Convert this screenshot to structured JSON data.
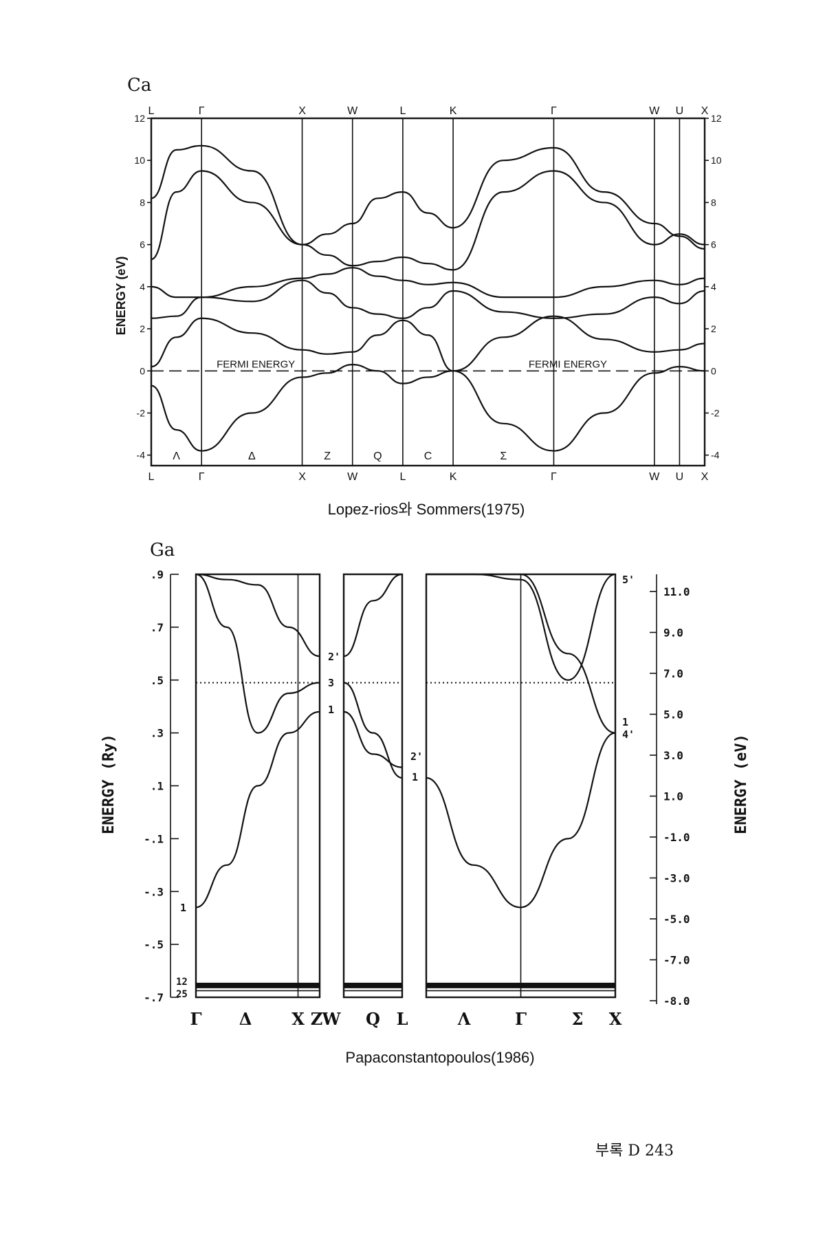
{
  "page": {
    "footer": "부록 D 243"
  },
  "chart_data": [
    {
      "type": "line",
      "element": "Ca",
      "ylabel": "ENERGY (eV)",
      "ylim": [
        -4.5,
        12
      ],
      "yticks": [
        12,
        10,
        8,
        6,
        4,
        2,
        0,
        -2,
        -4
      ],
      "yticks_right": [
        12,
        10,
        8,
        6,
        4,
        2,
        0,
        -2,
        -4
      ],
      "kpoints_top": [
        "L",
        "Γ",
        "X",
        "W",
        "L",
        "K",
        "Γ",
        "W",
        "U",
        "X"
      ],
      "kpoints_bottom": [
        "L",
        "Γ",
        "X",
        "W",
        "L",
        "K",
        "Γ",
        "W",
        "U",
        "X"
      ],
      "kpoint_positions": [
        0,
        1,
        3,
        4,
        5,
        6,
        8,
        10,
        10.5,
        11
      ],
      "segment_labels": [
        "Λ",
        "Δ",
        "Z",
        "Q",
        "C",
        "Σ"
      ],
      "fermi_label": "FERMI ENERGY",
      "fermi_level": 0,
      "caption": "Lopez-rios와 Sommers(1975)",
      "series": [
        {
          "x": [
            0,
            0.5,
            1,
            2,
            3,
            3.5,
            4,
            4.5,
            5,
            5.5,
            6,
            7,
            8,
            9,
            10,
            10.5,
            11
          ],
          "y": [
            -0.7,
            -2.8,
            -3.8,
            -2.0,
            -0.3,
            -0.1,
            0.3,
            0.0,
            -0.6,
            -0.3,
            0.0,
            -2.5,
            -3.8,
            -2.0,
            -0.1,
            0.2,
            0.0
          ]
        },
        {
          "x": [
            0,
            0.5,
            1,
            2,
            3,
            3.5,
            4,
            4.5,
            5,
            5.5,
            6,
            7,
            8,
            9,
            10,
            10.5,
            11
          ],
          "y": [
            0.2,
            1.6,
            2.5,
            1.8,
            1.0,
            0.8,
            0.9,
            1.7,
            2.4,
            1.7,
            0.0,
            1.6,
            2.6,
            1.5,
            0.9,
            1.0,
            1.3
          ]
        },
        {
          "x": [
            0,
            0.5,
            1,
            2,
            3,
            3.5,
            4,
            4.5,
            5,
            5.5,
            6,
            7,
            8,
            9,
            10,
            10.5,
            11
          ],
          "y": [
            2.5,
            2.6,
            3.5,
            3.3,
            4.3,
            3.7,
            3.0,
            2.7,
            2.5,
            3.0,
            3.8,
            2.8,
            2.5,
            2.7,
            3.5,
            3.2,
            3.8
          ]
        },
        {
          "x": [
            0,
            0.5,
            1,
            2,
            3,
            3.5,
            4,
            4.5,
            5,
            5.5,
            6,
            7,
            8,
            9,
            10,
            10.5,
            11
          ],
          "y": [
            4.0,
            3.5,
            3.5,
            4.0,
            4.4,
            4.6,
            4.9,
            4.5,
            4.3,
            4.1,
            4.2,
            3.5,
            3.5,
            4.0,
            4.3,
            4.1,
            4.4
          ]
        },
        {
          "x": [
            0,
            0.5,
            1,
            2,
            3,
            3.5,
            4,
            4.5,
            5,
            5.5,
            6,
            7,
            8,
            9,
            10,
            10.5,
            11
          ],
          "y": [
            5.3,
            8.5,
            9.5,
            8.0,
            6.0,
            5.5,
            5.0,
            5.2,
            5.4,
            5.1,
            4.8,
            8.5,
            9.5,
            8.0,
            6.0,
            6.5,
            6.0
          ]
        },
        {
          "x": [
            0,
            0.5,
            1,
            2,
            3,
            3.5,
            4,
            4.5,
            5,
            5.5,
            6,
            7,
            8,
            9,
            10,
            10.5,
            11
          ],
          "y": [
            8.2,
            10.5,
            10.7,
            9.5,
            6.0,
            6.5,
            7.0,
            8.2,
            8.5,
            7.5,
            6.8,
            10.0,
            10.6,
            8.5,
            7.0,
            6.4,
            5.8
          ]
        }
      ]
    },
    {
      "type": "line",
      "element": "Ga",
      "ylabel": "ENERGY (Ry)",
      "ylabel_right": "ENERGY (eV)",
      "ylim": [
        -0.7,
        0.9
      ],
      "yticks": [
        ".9",
        ".7",
        ".5",
        ".3",
        ".1",
        "-.1",
        "-.3",
        "-.5",
        "-.7"
      ],
      "yticks_right": [
        "11.0",
        "9.0",
        "7.0",
        "5.0",
        "3.0",
        "1.0",
        "-1.0",
        "-3.0",
        "-5.0",
        "-7.0",
        "-8.0"
      ],
      "kpoints_bottom": [
        "Γ",
        "Δ",
        "X",
        "Z",
        "W",
        "Q",
        "L",
        "Λ",
        "Γ",
        "Σ",
        "X"
      ],
      "fermi_level": 0.49,
      "caption": "Papaconstantopoulos(1986)",
      "series": [
        {
          "x": [
            0,
            0.5,
            1,
            1.5,
            2
          ],
          "y": [
            -0.36,
            -0.2,
            0.1,
            0.3,
            0.38
          ]
        },
        {
          "x": [
            0,
            0.5,
            1,
            1.5,
            2
          ],
          "y": [
            0.9,
            0.7,
            0.3,
            0.45,
            0.49
          ]
        },
        {
          "x": [
            0,
            0.5,
            1,
            1.5,
            2
          ],
          "y": [
            0.9,
            0.88,
            0.86,
            0.7,
            0.59
          ]
        },
        {
          "x": [
            2.5,
            3,
            3.5
          ],
          "y": [
            0.49,
            0.3,
            0.13
          ]
        },
        {
          "x": [
            2.5,
            3,
            3.5
          ],
          "y": [
            0.59,
            0.8,
            0.9
          ]
        },
        {
          "x": [
            2.5,
            3,
            3.5
          ],
          "y": [
            0.38,
            0.22,
            0.17
          ]
        },
        {
          "x": [
            4,
            4.5,
            5,
            5.5,
            6
          ],
          "y": [
            0.13,
            -0.2,
            -0.36,
            -0.1,
            0.3
          ]
        },
        {
          "x": [
            4,
            4.5,
            5,
            5.5,
            6
          ],
          "y": [
            0.9,
            0.9,
            0.9,
            0.6,
            0.3
          ]
        },
        {
          "x": [
            4,
            4.5,
            5,
            5.5,
            6
          ],
          "y": [
            0.9,
            0.9,
            0.88,
            0.5,
            0.9
          ]
        }
      ]
    }
  ],
  "labels": {
    "ca_title": "Ca",
    "ga_title": "Ga",
    "ga_lbl_2p": "2'",
    "ga_lbl_3": "3",
    "ga_lbl_1": "1",
    "ga_lbl_2p_l": "2'",
    "ga_lbl_1_l": "1",
    "ga_lbl_5p": "5'",
    "ga_lbl_1_x": "1",
    "ga_lbl_4p": "4'",
    "ga_lbl_1_g": "1",
    "ga_lbl_12": "12",
    "ga_lbl_25": "25"
  }
}
